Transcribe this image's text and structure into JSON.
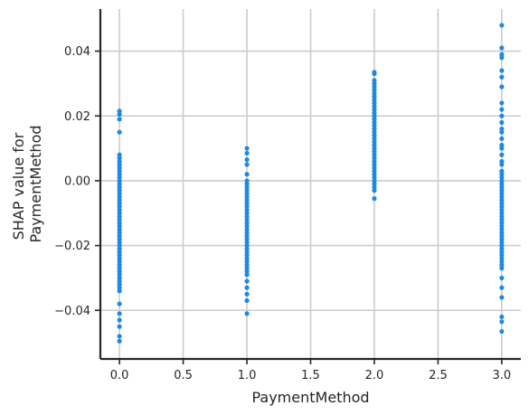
{
  "chart_data": {
    "type": "scatter",
    "xlabel": "PaymentMethod",
    "ylabel_lines": [
      "SHAP value for",
      "PaymentMethod"
    ],
    "xlim": [
      -0.15,
      3.15
    ],
    "ylim": [
      -0.055,
      0.053
    ],
    "x_ticks": [
      0.0,
      0.5,
      1.0,
      1.5,
      2.0,
      2.5,
      3.0
    ],
    "x_tick_labels": [
      "0.0",
      "0.5",
      "1.0",
      "1.5",
      "2.0",
      "2.5",
      "3.0"
    ],
    "y_ticks": [
      -0.04,
      -0.02,
      0.0,
      0.02,
      0.04
    ],
    "y_tick_labels": [
      "−0.04",
      "−0.02",
      "0.00",
      "0.02",
      "0.04"
    ],
    "grid": true,
    "point_color": "#1e88e5",
    "series": [
      {
        "x": 0,
        "y": [
          0.0215,
          0.0205,
          0.019,
          0.015,
          0.008,
          0.007,
          0.006,
          0.005,
          0.004,
          0.003,
          0.002,
          0.001,
          0.0,
          -0.001,
          -0.002,
          -0.003,
          -0.004,
          -0.005,
          -0.006,
          -0.007,
          -0.008,
          -0.009,
          -0.01,
          -0.011,
          -0.012,
          -0.013,
          -0.014,
          -0.015,
          -0.016,
          -0.017,
          -0.018,
          -0.019,
          -0.02,
          -0.021,
          -0.022,
          -0.023,
          -0.024,
          -0.025,
          -0.026,
          -0.027,
          -0.028,
          -0.029,
          -0.03,
          -0.031,
          -0.032,
          -0.033,
          -0.034,
          -0.038,
          -0.041,
          -0.043,
          -0.045,
          -0.048,
          -0.0495
        ]
      },
      {
        "x": 1,
        "y": [
          0.01,
          0.0085,
          0.0065,
          0.005,
          0.002,
          0.0,
          -0.001,
          -0.002,
          -0.003,
          -0.004,
          -0.005,
          -0.006,
          -0.007,
          -0.008,
          -0.009,
          -0.01,
          -0.011,
          -0.012,
          -0.013,
          -0.014,
          -0.015,
          -0.016,
          -0.017,
          -0.018,
          -0.019,
          -0.02,
          -0.021,
          -0.022,
          -0.023,
          -0.024,
          -0.025,
          -0.026,
          -0.027,
          -0.028,
          -0.029,
          -0.031,
          -0.033,
          -0.035,
          -0.037,
          -0.041
        ]
      },
      {
        "x": 2,
        "y": [
          0.0335,
          0.033,
          0.031,
          0.03,
          0.029,
          0.028,
          0.027,
          0.026,
          0.025,
          0.024,
          0.023,
          0.022,
          0.021,
          0.02,
          0.019,
          0.018,
          0.017,
          0.016,
          0.015,
          0.014,
          0.013,
          0.012,
          0.011,
          0.01,
          0.009,
          0.008,
          0.007,
          0.006,
          0.005,
          0.004,
          0.003,
          0.002,
          0.001,
          0.0,
          -0.001,
          -0.002,
          -0.003,
          -0.0055
        ]
      },
      {
        "x": 3,
        "y": [
          0.048,
          0.041,
          0.039,
          0.038,
          0.034,
          0.032,
          0.029,
          0.024,
          0.022,
          0.02,
          0.018,
          0.016,
          0.015,
          0.013,
          0.011,
          0.01,
          0.008,
          0.006,
          0.005,
          0.003,
          0.002,
          0.001,
          0.0,
          -0.001,
          -0.002,
          -0.003,
          -0.004,
          -0.005,
          -0.006,
          -0.007,
          -0.008,
          -0.009,
          -0.01,
          -0.011,
          -0.012,
          -0.013,
          -0.014,
          -0.015,
          -0.016,
          -0.017,
          -0.018,
          -0.019,
          -0.02,
          -0.021,
          -0.022,
          -0.023,
          -0.024,
          -0.025,
          -0.026,
          -0.027,
          -0.03,
          -0.033,
          -0.036,
          -0.042,
          -0.0435,
          -0.0465
        ]
      }
    ]
  }
}
